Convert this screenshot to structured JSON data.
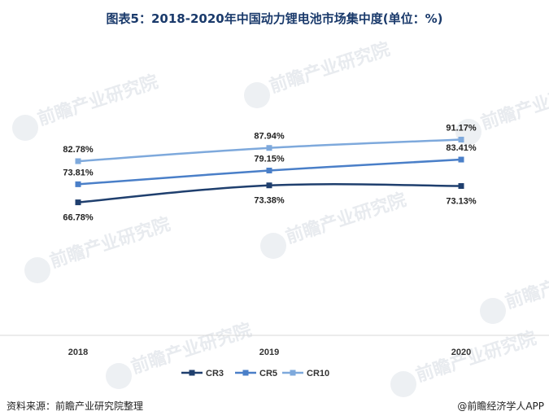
{
  "chart_data": {
    "type": "line",
    "title": "图表5：2018-2020年中国动力锂电池市场集中度(单位：%)",
    "categories": [
      "2018",
      "2019",
      "2020"
    ],
    "series": [
      {
        "name": "CR3",
        "values": [
          66.78,
          73.38,
          73.13
        ],
        "labels": [
          "66.78%",
          "73.38%",
          "73.13%"
        ],
        "color": "#1f3f6e"
      },
      {
        "name": "CR5",
        "values": [
          73.81,
          79.15,
          83.41
        ],
        "labels": [
          "73.81%",
          "79.15%",
          "83.41%"
        ],
        "color": "#4a7fc8"
      },
      {
        "name": "CR10",
        "values": [
          82.78,
          87.94,
          91.17
        ],
        "labels": [
          "82.78%",
          "87.94%",
          "91.17%"
        ],
        "color": "#7ea9dc"
      }
    ],
    "xlabel": "",
    "ylabel": "",
    "grid": false,
    "legend": "bottom"
  },
  "footer": {
    "source": "资料来源：前瞻产业研究院整理",
    "brand": "@前瞻经济学人APP"
  },
  "watermark": "前瞻产业研究院"
}
